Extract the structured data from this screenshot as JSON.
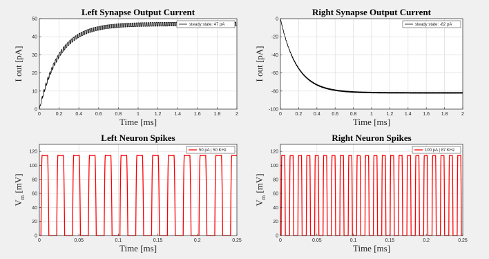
{
  "chart_data": [
    {
      "type": "line",
      "title": "Left Synapse Output Current",
      "xlabel": "Time [ms]",
      "ylabel": "I out [pA]",
      "xlim": [
        0,
        2
      ],
      "ylim": [
        0,
        50
      ],
      "xticks": [
        0,
        0.2,
        0.4,
        0.6,
        0.8,
        1,
        1.2,
        1.4,
        1.6,
        1.8,
        2
      ],
      "xtick_labels": [
        "0",
        "0.2",
        "0.4",
        "0.6",
        "0.8",
        "1",
        "1.2",
        "1.4",
        "1.6",
        "1.8",
        "2"
      ],
      "yticks": [
        0,
        10,
        20,
        30,
        40,
        50
      ],
      "ytick_labels": [
        "0",
        "10",
        "20",
        "30",
        "40",
        "50"
      ],
      "grid": true,
      "legend_position": "top-right",
      "series": [
        {
          "name": "steady state: 47 pA",
          "color": "#000000",
          "steady_state": 47,
          "time_constant_ms": 0.2,
          "ripple_period_ms": 0.02,
          "ripple_amplitude": 2
        }
      ]
    },
    {
      "type": "line",
      "title": "Right Synapse Output Current",
      "xlabel": "Time [ms]",
      "ylabel": "I out [pA]",
      "xlim": [
        0,
        2
      ],
      "ylim": [
        -100,
        0
      ],
      "xticks": [
        0,
        0.2,
        0.4,
        0.6,
        0.8,
        1,
        1.2,
        1.4,
        1.6,
        1.8,
        2
      ],
      "xtick_labels": [
        "0",
        "0.2",
        "0.4",
        "0.6",
        "0.8",
        "1",
        "1.2",
        "1.4",
        "1.6",
        "1.8",
        "2"
      ],
      "yticks": [
        -100,
        -80,
        -60,
        -40,
        -20,
        0
      ],
      "ytick_labels": [
        "-100",
        "-80",
        "-60",
        "-40",
        "-20",
        "0"
      ],
      "grid": true,
      "legend_position": "top-right",
      "series": [
        {
          "name": "steady state: -82 pA",
          "color": "#000000",
          "steady_state": -82,
          "time_constant_ms": 0.18,
          "ripple_period_ms": 0.0115,
          "ripple_amplitude": 1
        }
      ]
    },
    {
      "type": "line",
      "title": "Left Neuron Spikes",
      "xlabel": "Time [ms]",
      "ylabel": "V",
      "ylabel_subscript": "m",
      "ylabel_unit": "[mV]",
      "xlim": [
        0,
        0.25
      ],
      "ylim": [
        0,
        130
      ],
      "xticks": [
        0,
        0.05,
        0.1,
        0.15,
        0.2,
        0.25
      ],
      "xtick_labels": [
        "0",
        "0.05",
        "0.1",
        "0.15",
        "0.2",
        "0.25"
      ],
      "yticks": [
        0,
        20,
        40,
        60,
        80,
        100,
        120
      ],
      "ytick_labels": [
        "0",
        "20",
        "40",
        "60",
        "80",
        "100",
        "120"
      ],
      "grid": true,
      "legend_position": "top-right",
      "series": [
        {
          "name": "50 pA | 50 KHz",
          "color": "#ff0000",
          "frequency_khz": 50,
          "peak_mv": 115,
          "first_spike_ms": 0.002
        }
      ]
    },
    {
      "type": "line",
      "title": "Right Neuron Spikes",
      "xlabel": "Time [ms]",
      "ylabel": "V",
      "ylabel_subscript": "m",
      "ylabel_unit": "[mV]",
      "xlim": [
        0,
        0.25
      ],
      "ylim": [
        0,
        130
      ],
      "xticks": [
        0,
        0.05,
        0.1,
        0.15,
        0.2,
        0.25
      ],
      "xtick_labels": [
        "0",
        "0.05",
        "0.1",
        "0.15",
        "0.2",
        "0.25"
      ],
      "yticks": [
        0,
        20,
        40,
        60,
        80,
        100,
        120
      ],
      "ytick_labels": [
        "0",
        "20",
        "40",
        "60",
        "80",
        "100",
        "120"
      ],
      "grid": true,
      "legend_position": "top-right",
      "series": [
        {
          "name": "100 pA | 87 KHz",
          "color": "#ff0000",
          "frequency_khz": 87,
          "peak_mv": 115,
          "first_spike_ms": 0.001
        }
      ]
    }
  ]
}
